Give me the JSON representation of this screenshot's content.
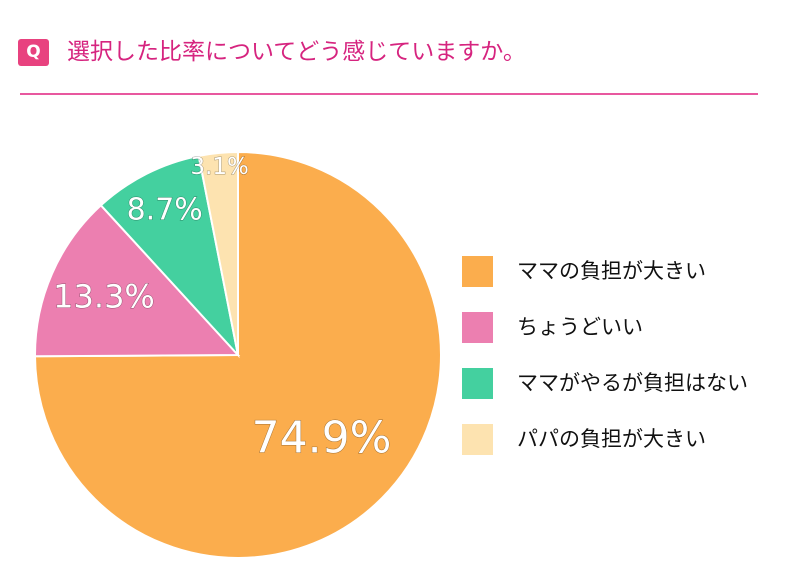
{
  "header": {
    "badge": "Q",
    "question": "選択した比率についてどう感じていますか。"
  },
  "colors": {
    "accent": "#d6247f",
    "divider": "#e8589f"
  },
  "chart_data": {
    "type": "pie",
    "title": "",
    "slices": [
      {
        "label": "ママの負担が大きい",
        "value": 74.9,
        "display": "74.9%",
        "color": "#fbad4d"
      },
      {
        "label": "ちょうどいい",
        "value": 13.3,
        "display": "13.3%",
        "color": "#ec7fb0"
      },
      {
        "label": "ママがやるが負担はない",
        "value": 8.7,
        "display": "8.7%",
        "color": "#44d09f"
      },
      {
        "label": "パパの負担が大きい",
        "value": 3.1,
        "display": "3.1%",
        "color": "#fde3b0"
      }
    ],
    "start": "12 o'clock",
    "direction": "clockwise",
    "legend": "right"
  }
}
